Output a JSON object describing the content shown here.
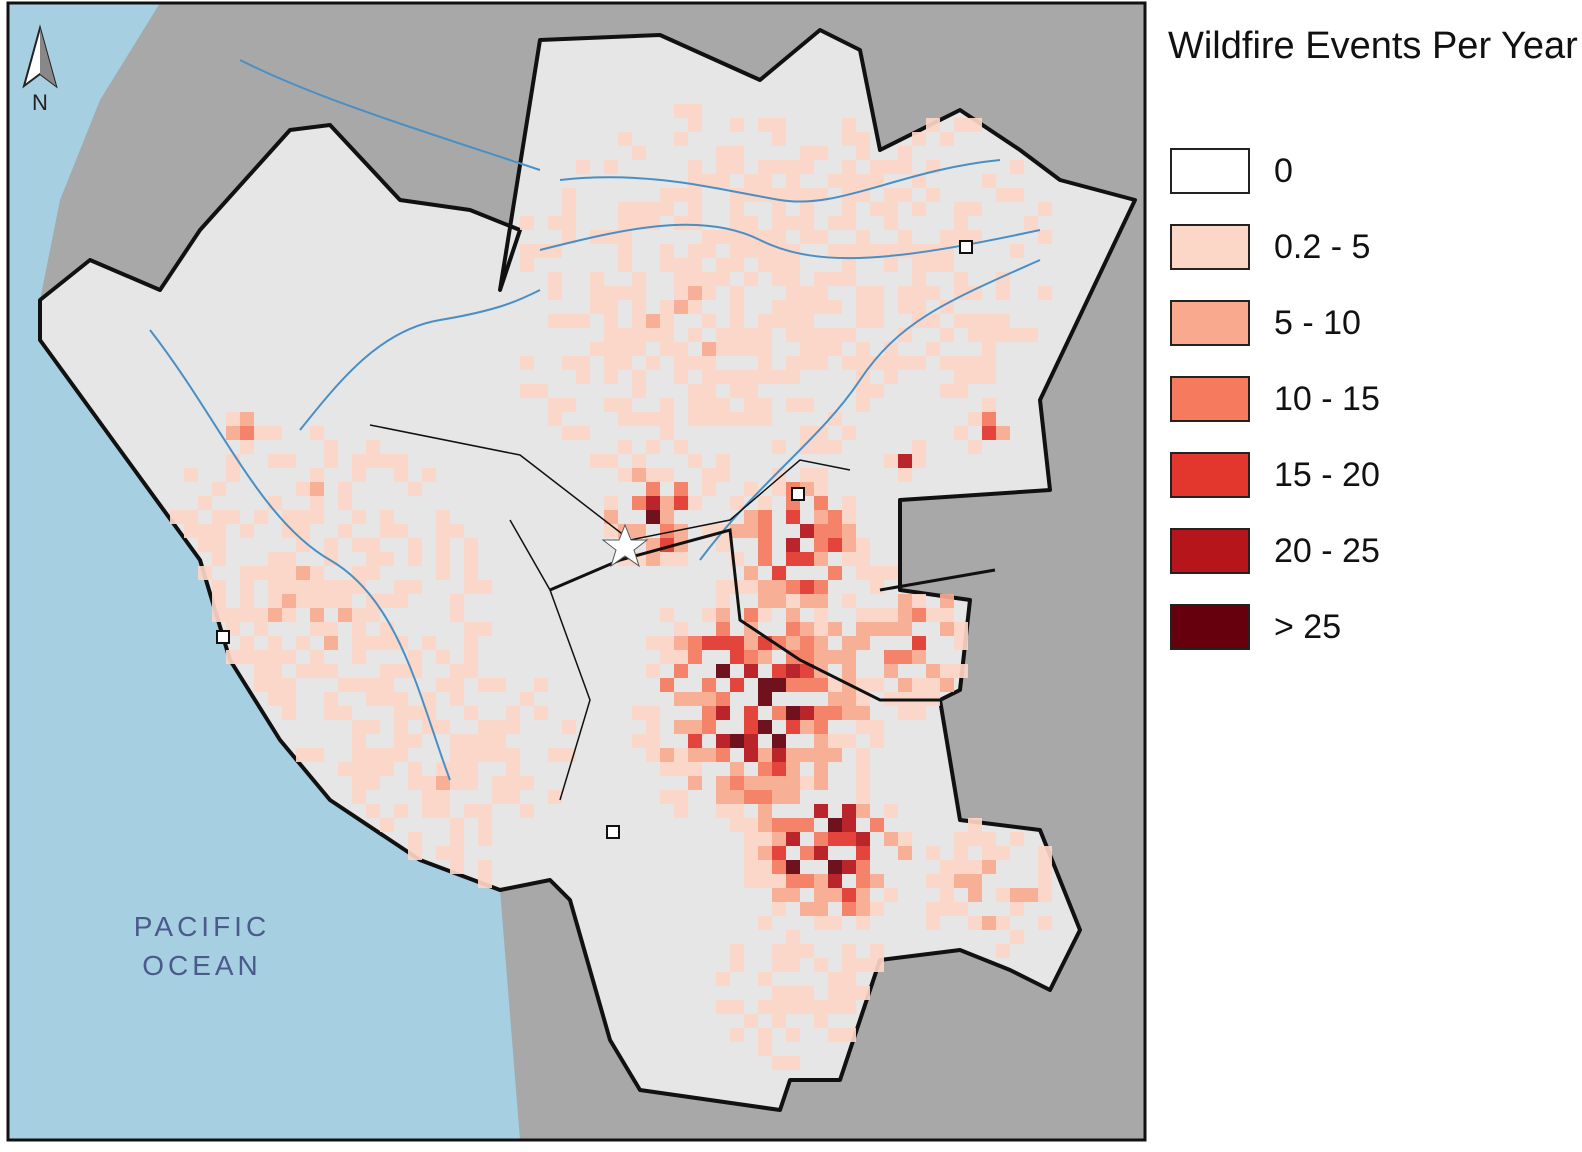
{
  "north_arrow": {
    "label": "N"
  },
  "ocean_label": {
    "lines": [
      "PACIFIC",
      "OCEAN"
    ]
  },
  "legend": {
    "title": "Wildfire Events Per Year",
    "items": [
      {
        "label": "0",
        "color": "#ffffff"
      },
      {
        "label": "0.2 - 5",
        "color": "#fcd6c6"
      },
      {
        "label": "5 - 10",
        "color": "#f9aa8e"
      },
      {
        "label": "10 - 15",
        "color": "#f67b5e"
      },
      {
        "label": "15 - 20",
        "color": "#e3362c"
      },
      {
        "label": "20 - 25",
        "color": "#b5151b"
      },
      {
        "label": "> 25",
        "color": "#66000d"
      }
    ]
  }
}
